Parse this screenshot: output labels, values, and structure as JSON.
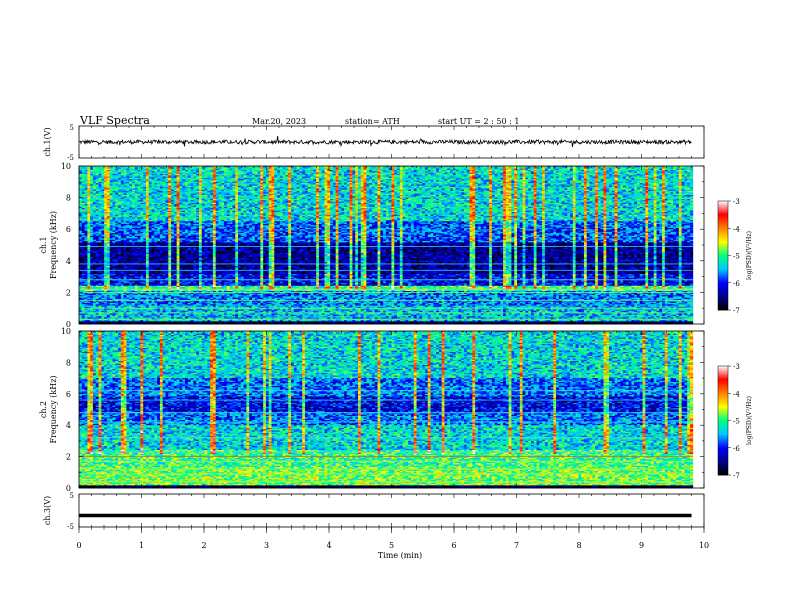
{
  "header": {
    "title": "VLF  Spectra",
    "date": "Mar.20, 2023",
    "station": "station= ATH",
    "start": "start  UT  =    2  : 50 : 1"
  },
  "chart_data": [
    {
      "type": "line",
      "id": "ch1",
      "ylabel": "ch.1(V)",
      "ylim": [
        -5,
        5
      ],
      "yticks": [
        "5",
        "-5"
      ],
      "xlim": [
        0,
        10
      ],
      "data_end_min": 9.8,
      "description_values": {
        "mean": 0,
        "noise_amplitude": 0.6
      },
      "color": "#000000"
    },
    {
      "type": "heatmap",
      "id": "ch1-spectrogram",
      "ylabel_top": "ch.1",
      "ylabel": "Frequency  (kHz)",
      "ylim": [
        0,
        10
      ],
      "yticks": [
        "0",
        "2",
        "4",
        "6",
        "8",
        "10"
      ],
      "xlim": [
        0,
        10
      ],
      "colorbar": {
        "label": "log(PSD)(V²/Hz)",
        "range": [
          -7,
          -3
        ],
        "ticks": [
          "-3",
          "-4",
          "-5",
          "-6",
          "-7"
        ]
      }
    },
    {
      "type": "heatmap",
      "id": "ch2-spectrogram",
      "ylabel_top": "ch.2",
      "ylabel": "Frequency  (kHz)",
      "ylim": [
        0,
        10
      ],
      "yticks": [
        "0",
        "2",
        "4",
        "6",
        "8",
        "10"
      ],
      "xlim": [
        0,
        10
      ],
      "colorbar": {
        "label": "log(PSD)(V²/Hz)",
        "range": [
          -7,
          -3
        ],
        "ticks": [
          "-3",
          "-4",
          "-5",
          "-6",
          "-7"
        ]
      }
    },
    {
      "type": "line",
      "id": "ch3",
      "ylabel": "ch.3(V)",
      "ylim": [
        -5,
        5
      ],
      "yticks": [
        "5",
        "-5"
      ],
      "xlim": [
        0,
        10
      ],
      "data_end_min": 9.8,
      "level": -1.5,
      "color": "#000000"
    }
  ],
  "xaxis": {
    "label": "Time  (min)",
    "ticks": [
      "0",
      "1",
      "2",
      "3",
      "4",
      "5",
      "6",
      "7",
      "8",
      "9",
      "10"
    ]
  },
  "colors": {
    "colormap": [
      "#000000",
      "#00008b",
      "#0000ff",
      "#00c8ff",
      "#00ff80",
      "#ffff00",
      "#ff8000",
      "#ff0000",
      "#ffffff"
    ]
  }
}
